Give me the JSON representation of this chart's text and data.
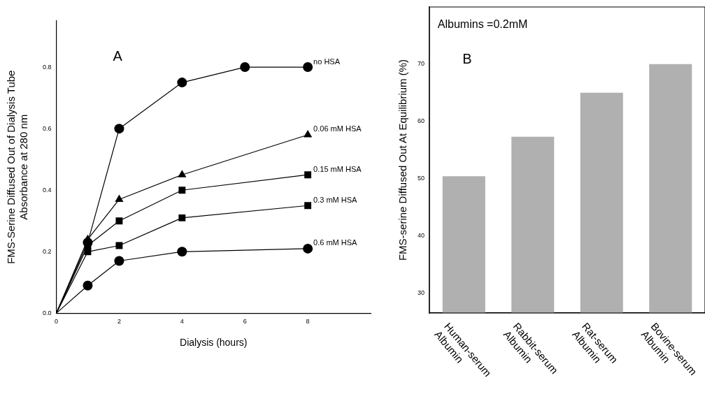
{
  "chart_data": [
    {
      "type": "line",
      "xlabel": "Dialysis (hours)",
      "ylabel": "FMS-Serine Diffused Out of Dialysis Tube\nAbsorbance at 280 nm",
      "annotations": [
        "A"
      ],
      "xlim": [
        0,
        10
      ],
      "xticks": [
        0,
        2,
        4,
        6,
        8
      ],
      "ylim": [
        0,
        0.95
      ],
      "yticks": [
        {
          "value": 0,
          "label": "0.0"
        },
        0.2,
        0.4,
        0.6,
        0.8
      ],
      "grid": false,
      "legend": false,
      "line_style": "solid",
      "series": [
        {
          "name": "no HSA",
          "color": "#000000",
          "marker": "circle",
          "x": [
            0,
            1,
            2,
            4,
            6,
            8
          ],
          "values": [
            0,
            0.23,
            0.6,
            0.75,
            0.8,
            0.8
          ]
        },
        {
          "name": "0.06 mM HSA",
          "color": "#000000",
          "marker": "triangle",
          "x": [
            0,
            1,
            2,
            4,
            8
          ],
          "values": [
            0,
            0.24,
            0.37,
            0.45,
            0.58
          ]
        },
        {
          "name": "0.15 mM HSA",
          "color": "#000000",
          "marker": "square",
          "x": [
            0,
            1,
            2,
            4,
            8
          ],
          "values": [
            0,
            0.22,
            0.3,
            0.4,
            0.45
          ]
        },
        {
          "name": "0.3 mM HSA",
          "color": "#000000",
          "marker": "square",
          "x": [
            0,
            1,
            2,
            4,
            8
          ],
          "values": [
            0,
            0.2,
            0.22,
            0.31,
            0.35
          ]
        },
        {
          "name": "0.6 mM HSA",
          "color": "#000000",
          "marker": "circle",
          "x": [
            0,
            1,
            2,
            4,
            8
          ],
          "values": [
            0,
            0.09,
            0.17,
            0.2,
            0.21
          ]
        }
      ]
    },
    {
      "type": "bar",
      "ylabel": "FMS-serine Diffused Out At Equilibrium (%)",
      "annotations": [
        "Albumins =0.2mM",
        "B"
      ],
      "categories": [
        "Human-serum Albumin",
        "Rabbit-serum Albumin",
        "Rat-serum Albumin",
        "Bovine-serum Albumin"
      ],
      "values": [
        50.4,
        57.3,
        65,
        70
      ],
      "color": "#b0b0b0",
      "ylim": [
        26.5,
        80
      ],
      "yticks": [
        30,
        40,
        50,
        60,
        70
      ],
      "grid": false,
      "legend": false
    }
  ]
}
